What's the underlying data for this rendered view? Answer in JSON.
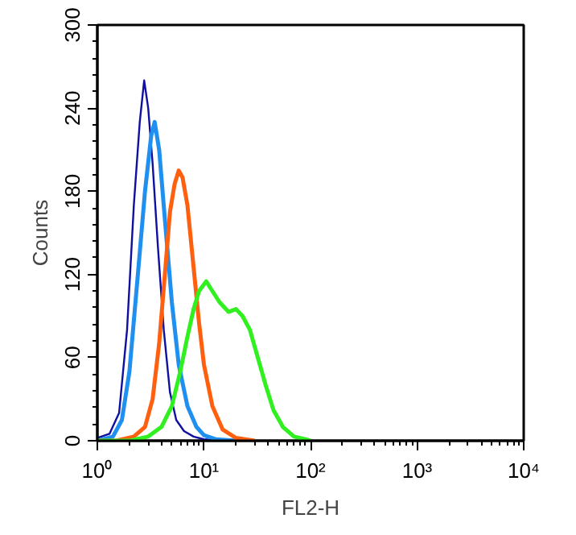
{
  "chart_data": {
    "type": "line",
    "xlabel": "FL2-H",
    "ylabel": "Counts",
    "log": "x",
    "grid": false,
    "xlim": [
      1,
      10000
    ],
    "ylim": [
      0,
      300
    ],
    "xticks": [
      {
        "value": 1,
        "label": "10⁰"
      },
      {
        "value": 10,
        "label": "10¹"
      },
      {
        "value": 100,
        "label": "10²"
      },
      {
        "value": 1000,
        "label": "10³"
      },
      {
        "value": 10000,
        "label": "10⁴"
      }
    ],
    "yticks": [
      0,
      60,
      120,
      180,
      240,
      300
    ],
    "series": [
      {
        "color": "#1010a0",
        "x": [
          1,
          1.3,
          1.6,
          1.9,
          2.2,
          2.5,
          2.75,
          3.0,
          3.3,
          3.7,
          4.2,
          4.8,
          5.5,
          6.5,
          8,
          10,
          15
        ],
        "values": [
          2,
          5,
          20,
          80,
          170,
          230,
          260,
          240,
          200,
          140,
          80,
          35,
          15,
          7,
          3,
          1,
          0
        ]
      },
      {
        "color": "#2090f0",
        "x": [
          1,
          1.4,
          1.7,
          2.0,
          2.4,
          2.8,
          3.2,
          3.45,
          3.8,
          4.3,
          5,
          5.8,
          7,
          8.5,
          10,
          13,
          20
        ],
        "values": [
          0,
          3,
          15,
          50,
          120,
          180,
          220,
          230,
          210,
          160,
          100,
          55,
          25,
          10,
          4,
          1,
          0
        ]
      },
      {
        "color": "#ff6010",
        "x": [
          1,
          1.5,
          2.2,
          2.8,
          3.3,
          3.8,
          4.3,
          4.8,
          5.3,
          5.8,
          6.3,
          7,
          8,
          9,
          10,
          12,
          15,
          20,
          30
        ],
        "values": [
          0,
          0,
          3,
          10,
          30,
          70,
          120,
          165,
          185,
          195,
          190,
          170,
          125,
          85,
          55,
          25,
          8,
          2,
          0
        ]
      },
      {
        "color": "#30f020",
        "x": [
          1,
          2,
          3,
          4,
          5,
          6,
          7,
          8,
          9,
          10.5,
          12,
          14,
          17,
          20,
          23,
          27,
          32,
          38,
          45,
          55,
          70,
          90,
          100
        ],
        "values": [
          0,
          0,
          3,
          10,
          25,
          50,
          75,
          95,
          108,
          115,
          108,
          100,
          93,
          95,
          90,
          80,
          60,
          40,
          22,
          10,
          3,
          1,
          0
        ]
      }
    ]
  }
}
